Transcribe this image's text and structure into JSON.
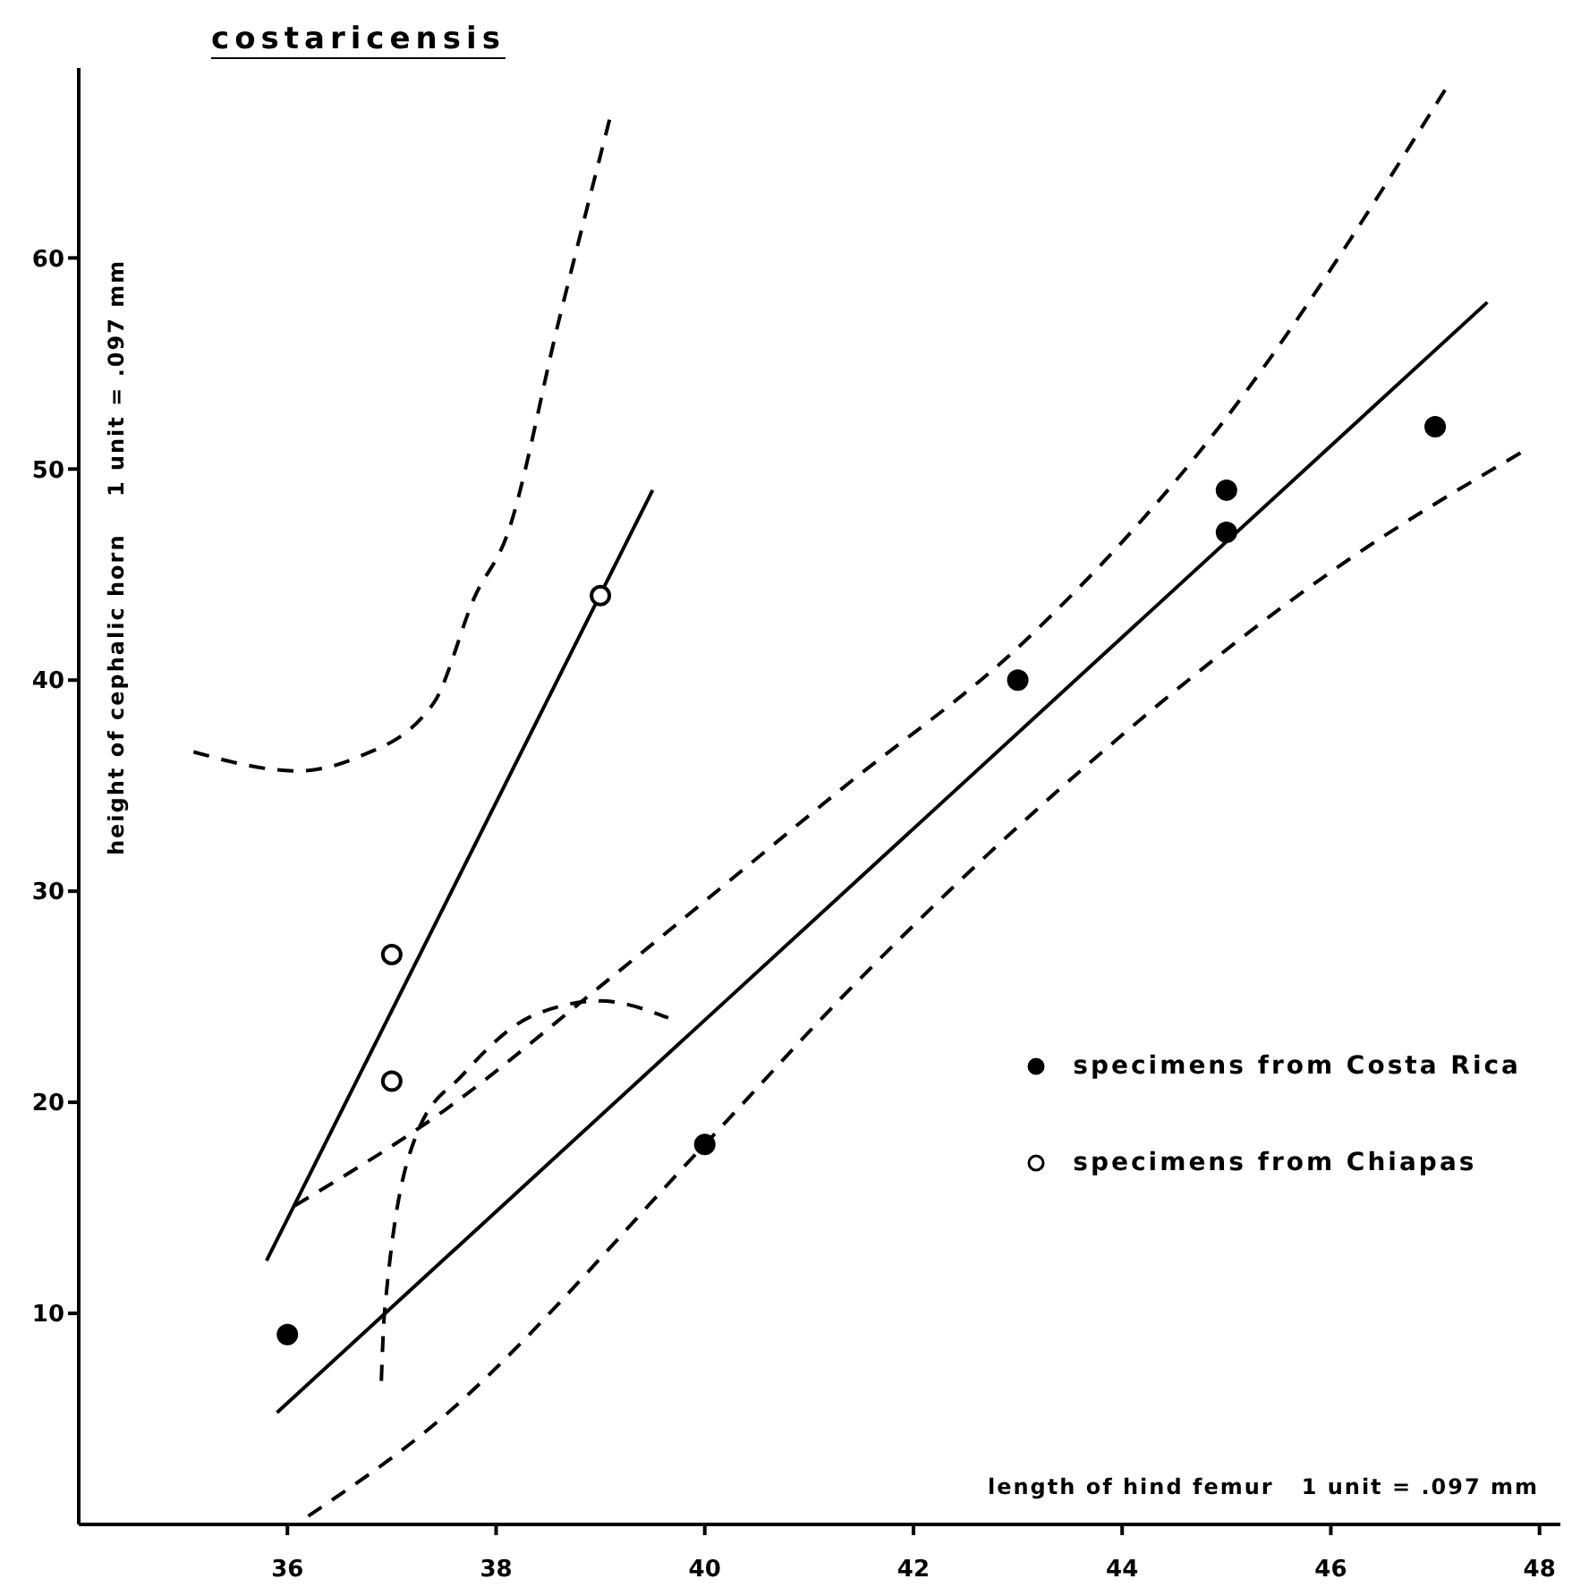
{
  "chart_data": {
    "type": "scatter",
    "title": "costaricensis",
    "xlabel": "length of hind femur   1 unit = .097 mm",
    "ylabel": "height of cephalic horn    1 unit = .097 mm",
    "xlim": [
      34,
      48.2
    ],
    "ylim": [
      0,
      69
    ],
    "xticks": [
      36,
      38,
      40,
      42,
      44,
      46,
      48
    ],
    "yticks": [
      10,
      20,
      30,
      40,
      50,
      60
    ],
    "grid": false,
    "legend": "right",
    "series": [
      {
        "name": "specimens from Costa Rica",
        "marker": "circle",
        "color": "#000000",
        "x": [
          36,
          40,
          43,
          45,
          45,
          47
        ],
        "values": [
          9,
          18,
          40,
          49,
          47,
          52
        ]
      },
      {
        "name": "specimens from Chiapas",
        "marker": "circle",
        "color": "#000000",
        "x": [
          37,
          37,
          39
        ],
        "values": [
          27,
          21,
          44
        ]
      },
      {
        "type": "line",
        "line_style": "solid",
        "marker": "none",
        "color": "#000000",
        "x": [
          35.9,
          47.5
        ],
        "values": [
          5.3,
          57.9
        ]
      },
      {
        "type": "line",
        "line_style": "dashed",
        "marker": "none",
        "color": "#000000",
        "x": [
          36.07,
          37.5,
          39,
          41.3,
          43.1,
          44.9,
          47.1
        ],
        "values": [
          15.1,
          19.6,
          25.5,
          34.8,
          42,
          51.8,
          68
        ]
      },
      {
        "type": "line",
        "line_style": "dashed",
        "marker": "none",
        "color": "#000000",
        "x": [
          36.2,
          37.3,
          40,
          41.3,
          44,
          46.05,
          47.9
        ],
        "values": [
          0.4,
          4.3,
          18,
          24.9,
          37.4,
          45.3,
          51
        ]
      },
      {
        "type": "line",
        "line_style": "solid",
        "marker": "none",
        "color": "#000000",
        "x": [
          35.8,
          39.5
        ],
        "values": [
          12.5,
          49
        ]
      },
      {
        "type": "line",
        "line_style": "dashed",
        "marker": "none",
        "color": "#000000",
        "x": [
          35.1,
          36.1,
          36.65,
          37.4,
          37.8,
          38.1,
          38.6,
          39.1
        ],
        "values": [
          36.6,
          35.7,
          36.3,
          38.9,
          44,
          46.8,
          57,
          66.8
        ]
      },
      {
        "type": "line",
        "line_style": "dashed",
        "marker": "none",
        "color": "#000000",
        "x": [
          36.9,
          36.93,
          37.24,
          37.68,
          38.35,
          39,
          39.65
        ],
        "values": [
          6.8,
          10,
          18.5,
          21.3,
          24.1,
          24.8,
          24
        ]
      }
    ]
  }
}
